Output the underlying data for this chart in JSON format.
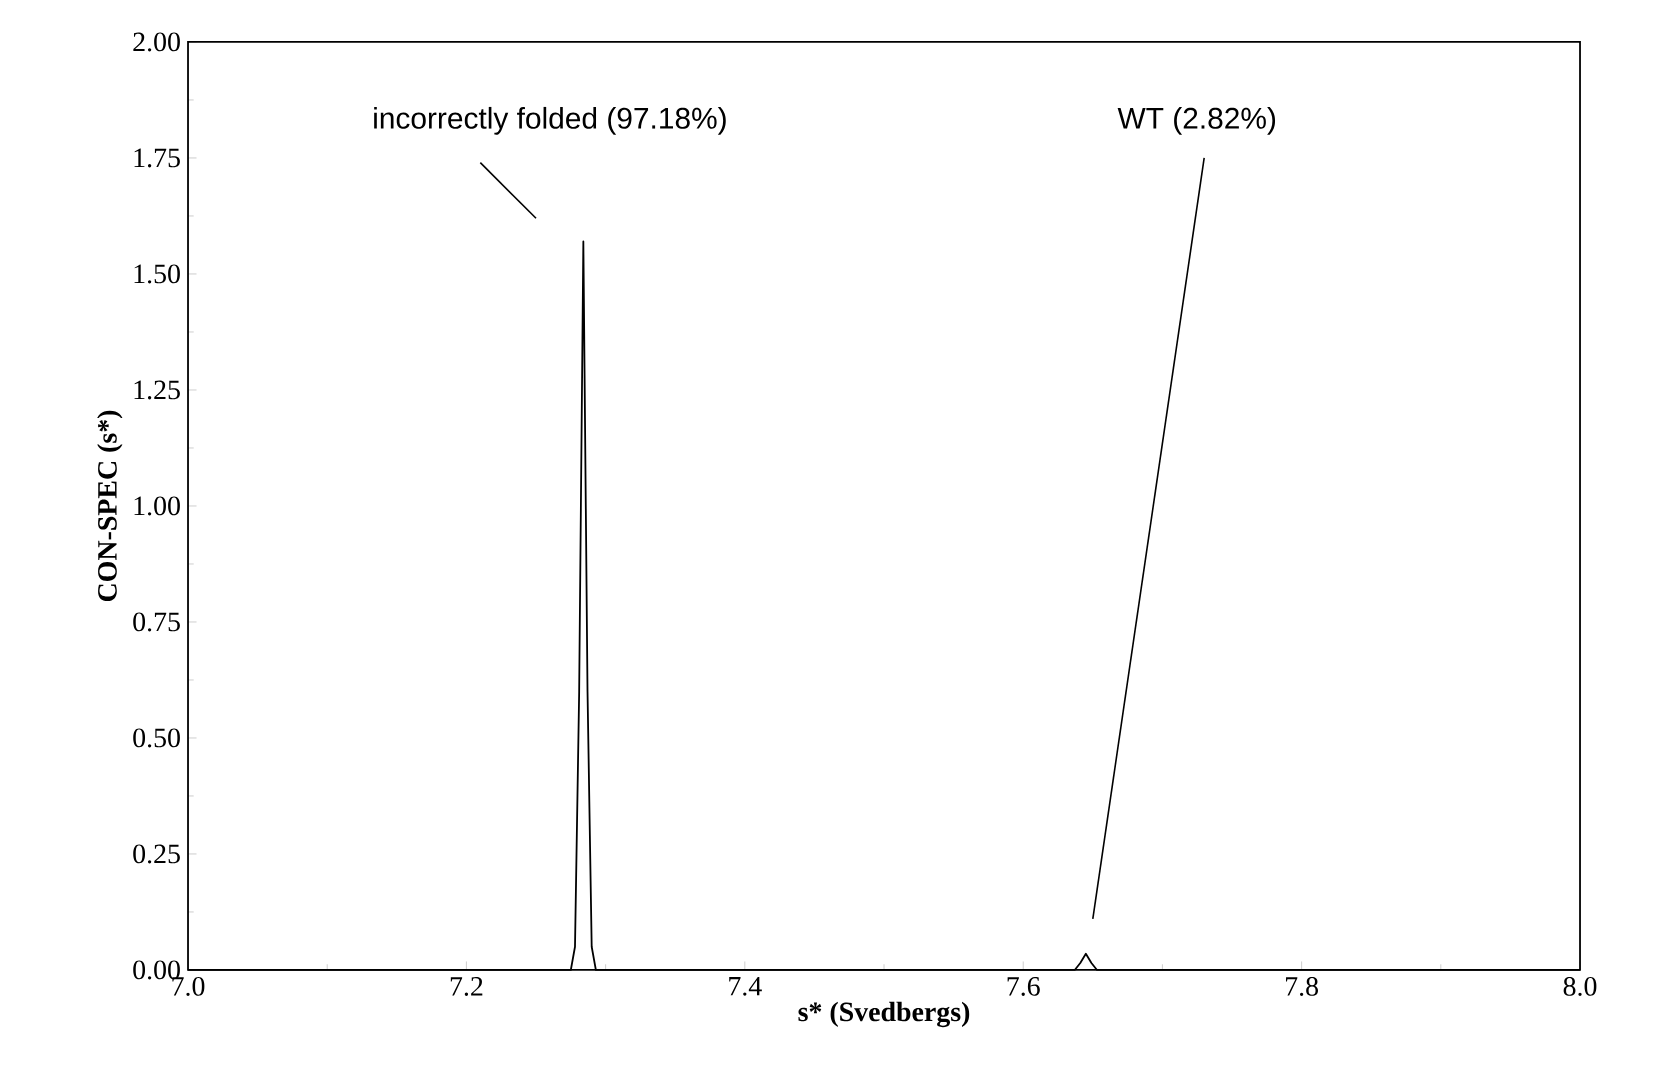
{
  "chart_data": {
    "type": "line",
    "xlabel": "s* (Svedbergs)",
    "ylabel": "CON-SPEC (s*)",
    "x": [
      7.0,
      7.275,
      7.278,
      7.281,
      7.284,
      7.287,
      7.29,
      7.293,
      7.637,
      7.641,
      7.645,
      7.649,
      7.653,
      8.0
    ],
    "series": [
      {
        "color": "#000000",
        "values": [
          0,
          0,
          0.05,
          0.6,
          1.57,
          0.6,
          0.05,
          0,
          0,
          0.015,
          0.035,
          0.015,
          0,
          0
        ]
      }
    ],
    "xlim": [
      7.0,
      8.0
    ],
    "ylim": [
      0,
      2.0
    ],
    "xticks": [
      {
        "value": 7.0,
        "label": "7.0"
      },
      {
        "value": 7.2,
        "label": "7.2"
      },
      {
        "value": 7.4,
        "label": "7.4"
      },
      {
        "value": 7.6,
        "label": "7.6"
      },
      {
        "value": 7.8,
        "label": "7.8"
      },
      {
        "value": 8.0,
        "label": "8.0"
      }
    ],
    "yticks": [
      {
        "value": 0,
        "label": "0.00"
      },
      {
        "value": 0.25,
        "label": "0.25"
      },
      {
        "value": 0.5,
        "label": "0.50"
      },
      {
        "value": 0.75,
        "label": "0.75"
      },
      {
        "value": 1.0,
        "label": "1.00"
      },
      {
        "value": 1.25,
        "label": "1.25"
      },
      {
        "value": 1.5,
        "label": "1.50"
      },
      {
        "value": 1.75,
        "label": "1.75"
      },
      {
        "value": 2.0,
        "label": "2.00"
      }
    ],
    "annotations": [
      "incorrectly folded (97.18%)",
      "WT (2.82%)"
    ],
    "marker": "none",
    "line_style": "solid"
  }
}
